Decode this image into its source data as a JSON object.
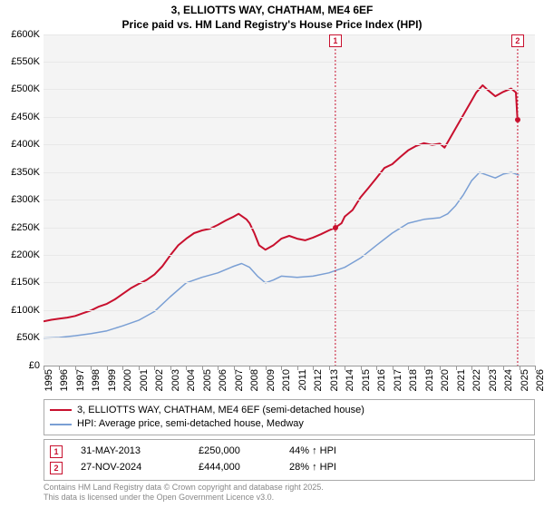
{
  "title": "3, ELLIOTTS WAY, CHATHAM, ME4 6EF",
  "subtitle": "Price paid vs. HM Land Registry's House Price Index (HPI)",
  "chart": {
    "type": "line",
    "background_color": "#f4f4f4",
    "grid_color": "#e8e8e8",
    "ylim": [
      0,
      600000
    ],
    "ytick_step": 50000,
    "yticks": [
      "£0",
      "£50K",
      "£100K",
      "£150K",
      "£200K",
      "£250K",
      "£300K",
      "£350K",
      "£400K",
      "£450K",
      "£500K",
      "£550K",
      "£600K"
    ],
    "xlim": [
      1995,
      2026
    ],
    "xticks": [
      1995,
      1996,
      1997,
      1998,
      1999,
      2000,
      2001,
      2002,
      2003,
      2004,
      2005,
      2006,
      2007,
      2008,
      2009,
      2010,
      2011,
      2012,
      2013,
      2014,
      2015,
      2016,
      2017,
      2018,
      2019,
      2020,
      2021,
      2022,
      2023,
      2024,
      2025,
      2026
    ],
    "series": [
      {
        "name": "3, ELLIOTTS WAY, CHATHAM, ME4 6EF (semi-detached house)",
        "color": "#c8102e",
        "width": 2,
        "points": [
          [
            1995.0,
            80000
          ],
          [
            1995.5,
            83000
          ],
          [
            1996.0,
            85000
          ],
          [
            1996.5,
            87000
          ],
          [
            1997.0,
            90000
          ],
          [
            1997.5,
            95000
          ],
          [
            1998.0,
            100000
          ],
          [
            1998.5,
            107000
          ],
          [
            1999.0,
            112000
          ],
          [
            1999.5,
            120000
          ],
          [
            2000.0,
            130000
          ],
          [
            2000.5,
            140000
          ],
          [
            2001.0,
            148000
          ],
          [
            2001.5,
            155000
          ],
          [
            2002.0,
            165000
          ],
          [
            2002.5,
            180000
          ],
          [
            2003.0,
            200000
          ],
          [
            2003.5,
            218000
          ],
          [
            2004.0,
            230000
          ],
          [
            2004.5,
            240000
          ],
          [
            2005.0,
            245000
          ],
          [
            2005.5,
            248000
          ],
          [
            2006.0,
            255000
          ],
          [
            2006.5,
            263000
          ],
          [
            2007.0,
            270000
          ],
          [
            2007.3,
            275000
          ],
          [
            2007.8,
            265000
          ],
          [
            2008.0,
            258000
          ],
          [
            2008.3,
            240000
          ],
          [
            2008.6,
            218000
          ],
          [
            2009.0,
            210000
          ],
          [
            2009.5,
            218000
          ],
          [
            2010.0,
            230000
          ],
          [
            2010.5,
            235000
          ],
          [
            2011.0,
            230000
          ],
          [
            2011.5,
            227000
          ],
          [
            2012.0,
            232000
          ],
          [
            2012.5,
            238000
          ],
          [
            2013.0,
            245000
          ],
          [
            2013.4,
            250000
          ],
          [
            2013.8,
            258000
          ],
          [
            2014.0,
            270000
          ],
          [
            2014.5,
            282000
          ],
          [
            2015.0,
            305000
          ],
          [
            2015.5,
            322000
          ],
          [
            2016.0,
            340000
          ],
          [
            2016.5,
            358000
          ],
          [
            2017.0,
            365000
          ],
          [
            2017.5,
            378000
          ],
          [
            2018.0,
            390000
          ],
          [
            2018.5,
            398000
          ],
          [
            2019.0,
            403000
          ],
          [
            2019.5,
            400000
          ],
          [
            2020.0,
            402000
          ],
          [
            2020.3,
            395000
          ],
          [
            2020.6,
            410000
          ],
          [
            2021.0,
            430000
          ],
          [
            2021.5,
            455000
          ],
          [
            2022.0,
            480000
          ],
          [
            2022.3,
            495000
          ],
          [
            2022.7,
            508000
          ],
          [
            2023.0,
            500000
          ],
          [
            2023.5,
            488000
          ],
          [
            2024.0,
            496000
          ],
          [
            2024.5,
            502000
          ],
          [
            2024.8,
            495000
          ],
          [
            2024.9,
            444000
          ]
        ]
      },
      {
        "name": "HPI: Average price, semi-detached house, Medway",
        "color": "#7a9fd4",
        "width": 1.5,
        "points": [
          [
            1995.0,
            50000
          ],
          [
            1996.0,
            51000
          ],
          [
            1997.0,
            54000
          ],
          [
            1998.0,
            58000
          ],
          [
            1999.0,
            63000
          ],
          [
            2000.0,
            72000
          ],
          [
            2001.0,
            82000
          ],
          [
            2002.0,
            98000
          ],
          [
            2003.0,
            125000
          ],
          [
            2004.0,
            150000
          ],
          [
            2005.0,
            160000
          ],
          [
            2006.0,
            168000
          ],
          [
            2007.0,
            180000
          ],
          [
            2007.5,
            185000
          ],
          [
            2008.0,
            178000
          ],
          [
            2008.5,
            162000
          ],
          [
            2009.0,
            150000
          ],
          [
            2009.5,
            155000
          ],
          [
            2010.0,
            162000
          ],
          [
            2011.0,
            160000
          ],
          [
            2012.0,
            162000
          ],
          [
            2013.0,
            168000
          ],
          [
            2014.0,
            178000
          ],
          [
            2015.0,
            195000
          ],
          [
            2016.0,
            218000
          ],
          [
            2017.0,
            240000
          ],
          [
            2018.0,
            258000
          ],
          [
            2019.0,
            265000
          ],
          [
            2020.0,
            268000
          ],
          [
            2020.5,
            275000
          ],
          [
            2021.0,
            290000
          ],
          [
            2021.5,
            310000
          ],
          [
            2022.0,
            335000
          ],
          [
            2022.5,
            350000
          ],
          [
            2023.0,
            345000
          ],
          [
            2023.5,
            340000
          ],
          [
            2024.0,
            347000
          ],
          [
            2024.5,
            350000
          ],
          [
            2025.0,
            345000
          ]
        ]
      }
    ],
    "markers": [
      {
        "n": "1",
        "x": 2013.41,
        "y": 250000,
        "date": "31-MAY-2013",
        "price": "£250,000",
        "pct": "44% ↑ HPI"
      },
      {
        "n": "2",
        "x": 2024.91,
        "y": 444000,
        "date": "27-NOV-2024",
        "price": "£444,000",
        "pct": "28% ↑ HPI"
      }
    ]
  },
  "legend": {
    "items": [
      {
        "color": "#c8102e",
        "label": "3, ELLIOTTS WAY, CHATHAM, ME4 6EF (semi-detached house)"
      },
      {
        "color": "#7a9fd4",
        "label": "HPI: Average price, semi-detached house, Medway"
      }
    ]
  },
  "credits": {
    "line1": "Contains HM Land Registry data © Crown copyright and database right 2025.",
    "line2": "This data is licensed under the Open Government Licence v3.0."
  },
  "label_fontsize": 11
}
